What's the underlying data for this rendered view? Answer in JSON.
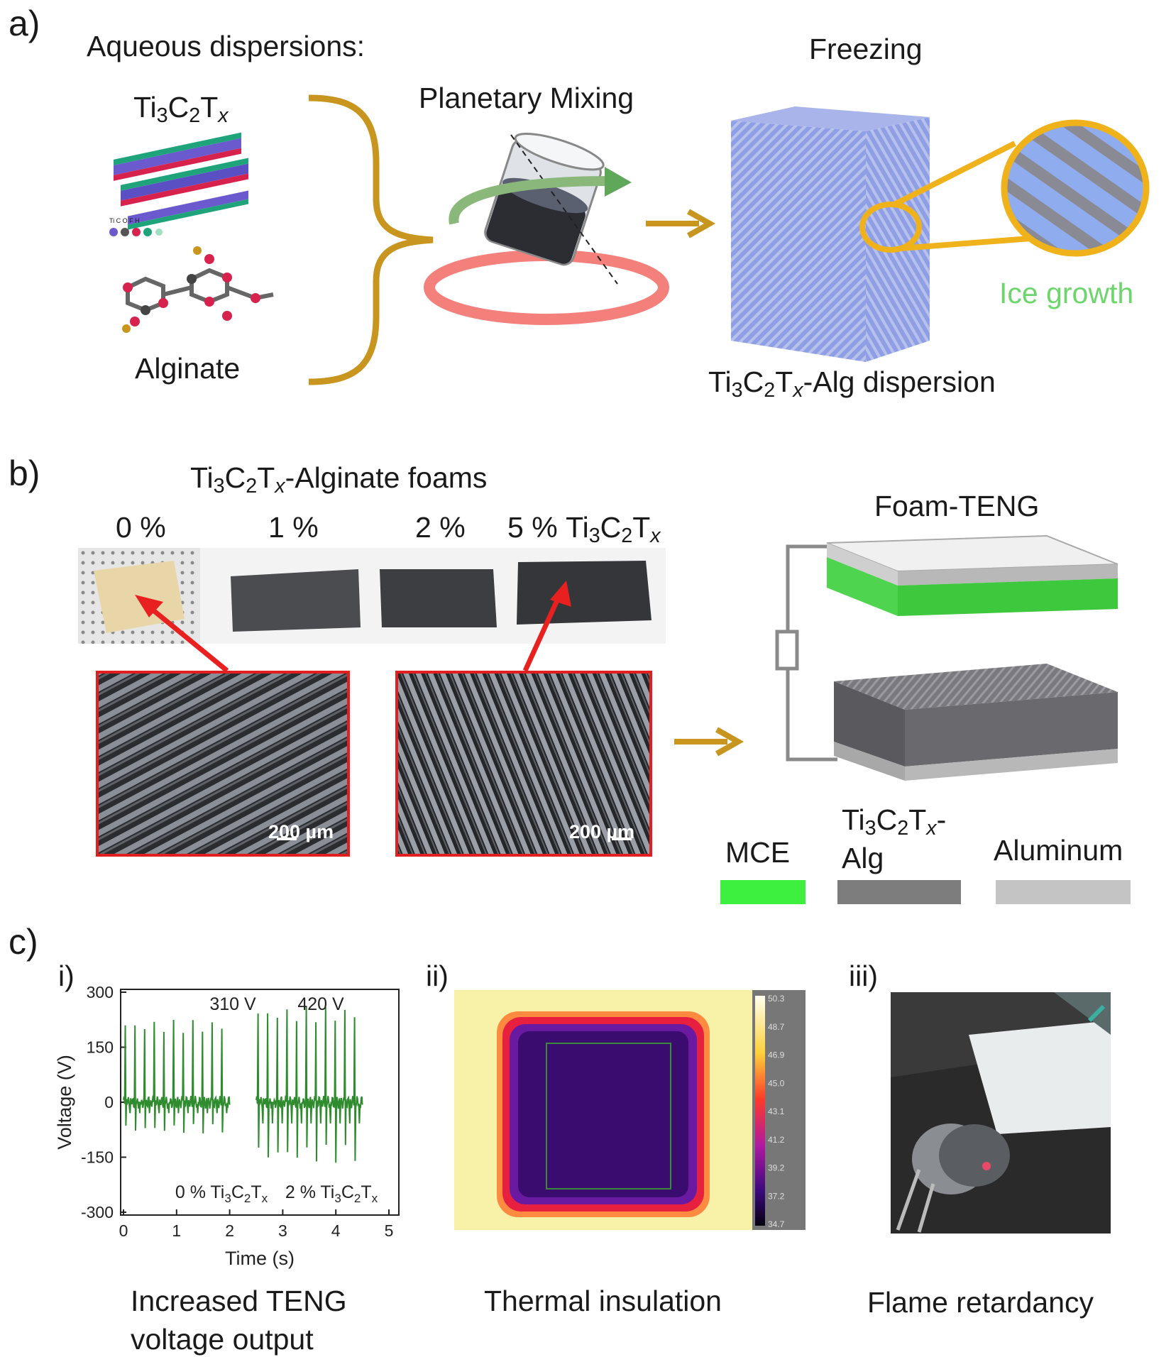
{
  "panel_a": {
    "label": "a)",
    "aqueous_title": "Aqueous dispersions:",
    "mxene_parts": [
      "Ti",
      "3",
      "C",
      "2",
      "T",
      "x"
    ],
    "atom_legend": "Ti C O F H",
    "alginate": "Alginate",
    "mixing": "Planetary Mixing",
    "freezing": "Freezing",
    "ice_growth": "Ice growth",
    "dispersion_suffix": "-Alg dispersion"
  },
  "panel_b": {
    "label": "b)",
    "foams_suffix": "-Alginate foams",
    "pct_0": "0 %",
    "pct_1": "1 %",
    "pct_2": "2 %",
    "pct_5": "5 %",
    "scale_bar": "200 µm",
    "teng_title": "Foam-TENG",
    "legend": {
      "mce": "MCE",
      "alg_suffix": "-",
      "alg_line2": "Alg",
      "aluminum": "Aluminum"
    },
    "colors": {
      "mce": "#3df03d",
      "alg": "#7d7d7d",
      "aluminum": "#c4c4c4",
      "arrow": "#c8961e",
      "red_arrow": "#e82020"
    }
  },
  "panel_c": {
    "label": "c)",
    "sub_i": "i)",
    "sub_ii": "ii)",
    "sub_iii": "iii)",
    "caption_i_line1": "Increased TENG",
    "caption_i_line2": "voltage output",
    "caption_ii": "Thermal insulation",
    "caption_iii": "Flame retardancy",
    "thermal_scale": [
      "50.3",
      "48.7",
      "46.9",
      "45.0",
      "43.1",
      "41.2",
      "39.2",
      "37.2",
      "34.7"
    ]
  },
  "chart_data": {
    "type": "line",
    "xlabel": "Time (s)",
    "ylabel": "Voltage (V)",
    "xlim": [
      0,
      5
    ],
    "ylim": [
      -300,
      300
    ],
    "x_ticks": [
      0,
      1,
      2,
      3,
      4,
      5
    ],
    "y_ticks": [
      300,
      150,
      0,
      -150,
      -300
    ],
    "annotations": [
      "310 V",
      "420 V"
    ],
    "series": [
      {
        "name": "0 % Ti3C2Tx",
        "t_start": 0.0,
        "t_end": 2.0,
        "peaks": 11,
        "max": 225,
        "min": -85,
        "color": "#2e8b2e"
      },
      {
        "name": "2 % Ti3C2Tx",
        "t_start": 2.5,
        "t_end": 4.5,
        "peaks": 11,
        "max": 260,
        "min": -165,
        "color": "#2e8b2e"
      }
    ]
  }
}
